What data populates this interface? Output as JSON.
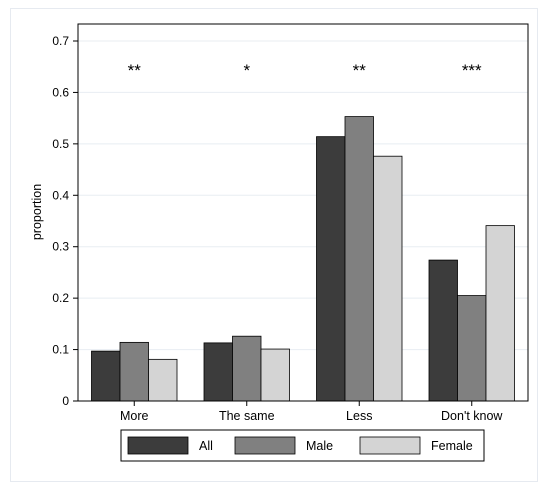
{
  "chart_data": {
    "type": "bar",
    "title": "",
    "xlabel": "",
    "ylabel": "proportion",
    "ylim": [
      0,
      0.7
    ],
    "yticks": [
      "0",
      "0.1",
      "0.2",
      "0.3",
      "0.4",
      "0.5",
      "0.6",
      "0.7"
    ],
    "grid": true,
    "legend_position": "bottom",
    "categories": [
      "More",
      "The same",
      "Less",
      "Don't know"
    ],
    "significance": [
      "**",
      "*",
      "**",
      "***"
    ],
    "series": [
      {
        "name": "All",
        "color": "#3c3c3c",
        "values": [
          0.097,
          0.113,
          0.514,
          0.274
        ]
      },
      {
        "name": "Male",
        "color": "#808080",
        "values": [
          0.114,
          0.126,
          0.553,
          0.205
        ]
      },
      {
        "name": "Female",
        "color": "#d4d4d4",
        "values": [
          0.081,
          0.101,
          0.476,
          0.341
        ]
      }
    ]
  }
}
